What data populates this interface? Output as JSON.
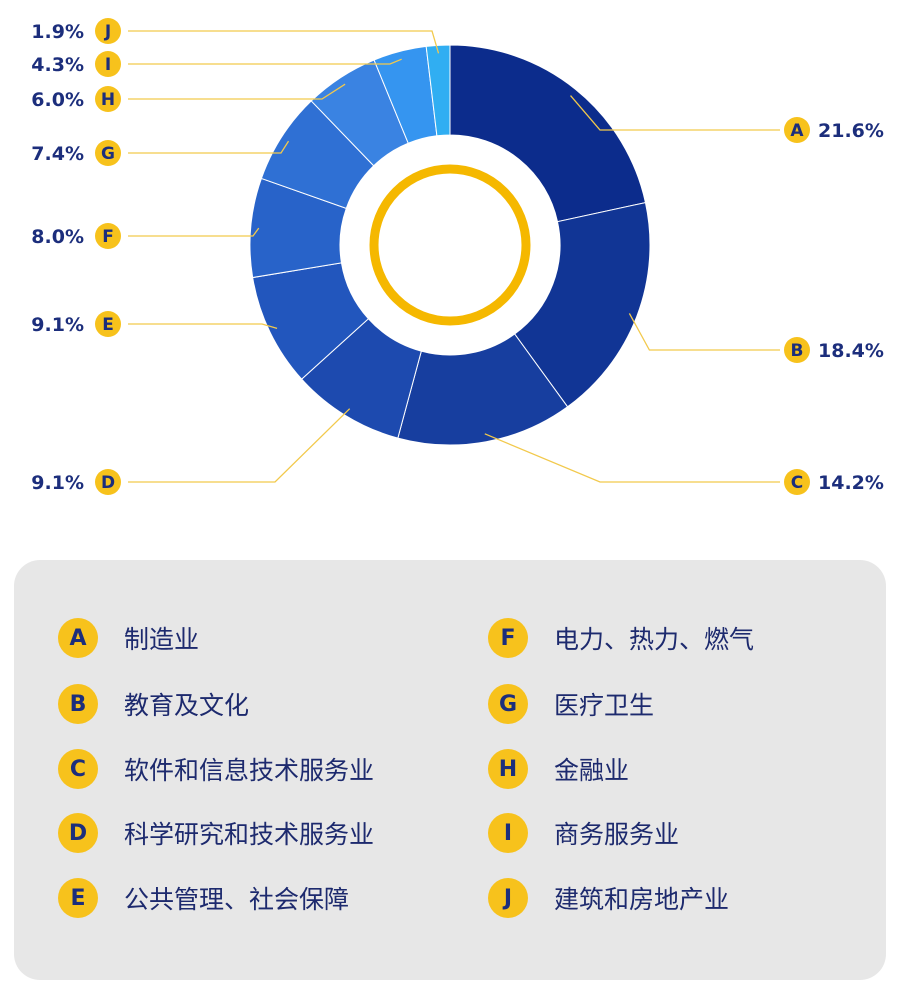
{
  "chart_data": {
    "type": "pie",
    "variant": "donut",
    "title": "",
    "slices": [
      {
        "letter": "A",
        "name": "制造业",
        "value": 21.6,
        "value_label": "21.6%",
        "color": "#0c2c8c"
      },
      {
        "letter": "B",
        "name": "教育及文化",
        "value": 18.4,
        "value_label": "18.4%",
        "color": "#113595"
      },
      {
        "letter": "C",
        "name": "软件和信息技术服务业",
        "value": 14.2,
        "value_label": "14.2%",
        "color": "#173e9f"
      },
      {
        "letter": "D",
        "name": "科学研究和技术服务业",
        "value": 9.1,
        "value_label": "9.1%",
        "color": "#1d4aaf"
      },
      {
        "letter": "E",
        "name": "公共管理、社会保障",
        "value": 9.1,
        "value_label": "9.1%",
        "color": "#2256bd"
      },
      {
        "letter": "F",
        "name": "电力、热力、燃气",
        "value": 8.0,
        "value_label": "8.0%",
        "color": "#2863c9"
      },
      {
        "letter": "G",
        "name": "医疗卫生",
        "value": 7.4,
        "value_label": "7.4%",
        "color": "#2f70d4"
      },
      {
        "letter": "H",
        "name": "金融业",
        "value": 6.0,
        "value_label": "6.0%",
        "color": "#3a83e2"
      },
      {
        "letter": "I",
        "name": "商务服务业",
        "value": 4.3,
        "value_label": "4.3%",
        "color": "#3595f0"
      },
      {
        "letter": "J",
        "name": "建筑和房地产业",
        "value": 1.9,
        "value_label": "1.9%",
        "color": "#30aef2"
      }
    ],
    "badge_color": "#f7c21c",
    "leader_line_color": "#f2c94c",
    "ring_color": "#f5b800",
    "text_color": "#1c2e7c"
  }
}
